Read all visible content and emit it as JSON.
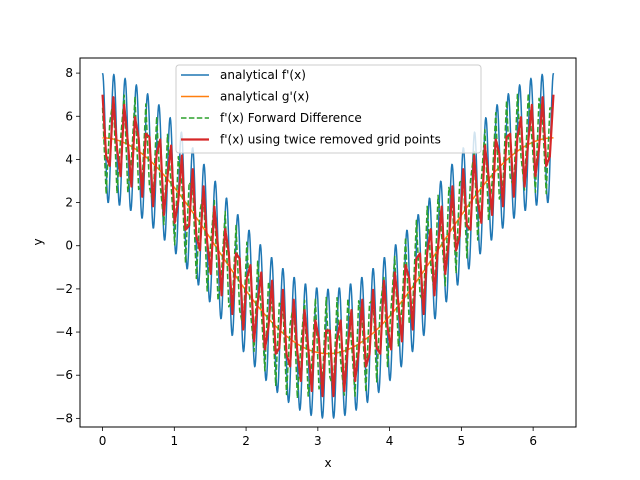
{
  "chart_data": {
    "type": "line",
    "title": "",
    "xlabel": "x",
    "ylabel": "y",
    "xlim": [
      -0.3142,
      6.5973
    ],
    "ylim": [
      -8.4,
      8.7
    ],
    "xticks": [
      0,
      1,
      2,
      3,
      4,
      5,
      6
    ],
    "yticks": [
      -8,
      -6,
      -4,
      -2,
      0,
      2,
      4,
      6,
      8
    ],
    "grid": false,
    "legend_position": "top-center",
    "x_domain": [
      0,
      6.2832
    ],
    "series": [
      {
        "name": "analytical f'(x)",
        "color": "#1f77b4",
        "style": "solid",
        "width": 1.5,
        "formula": "5*cos(x) + 3*cos(40*x)",
        "samples": 1000
      },
      {
        "name": "analytical g'(x)",
        "color": "#ff7f0e",
        "style": "solid",
        "width": 1.5,
        "formula": "5*cos(x)",
        "samples": 1000
      },
      {
        "name": "f'(x) Forward Difference",
        "color": "#2ca02c",
        "style": "dashed",
        "width": 1.5,
        "formula": "5*cos(x+0.05) + 2.6*cos(40*x+1.0)",
        "samples": 126
      },
      {
        "name": "f'(x) using twice removed grid points",
        "color": "#d62728",
        "style": "solid",
        "width": 2.2,
        "formula": "5*cos(x) + 2.0*cos(40*x)",
        "samples": 126
      }
    ]
  }
}
